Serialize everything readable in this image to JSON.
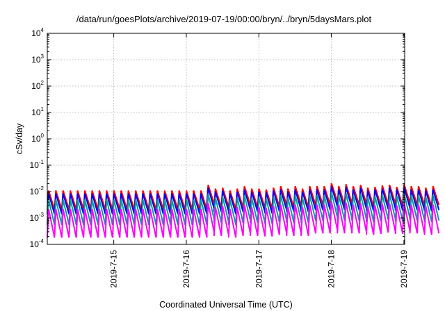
{
  "chart_data": {
    "type": "line",
    "title": "/data/run/goesPlots/archive/2019-07-19/00:00/bryn/../bryn/5daysMars.plot",
    "xlabel": "Coordinated Universal Time (UTC)",
    "ylabel": "cSv/day",
    "yscale": "log",
    "ylim": [
      0.0001,
      10000
    ],
    "xlim": [
      "2019-07-14 02:00",
      "2019-07-19 00:15"
    ],
    "grid": true,
    "y_ticks": [
      {
        "base": "10",
        "exp": "-4"
      },
      {
        "base": "10",
        "exp": "-3"
      },
      {
        "base": "10",
        "exp": "-2"
      },
      {
        "base": "10",
        "exp": "-1"
      },
      {
        "base": "10",
        "exp": "0"
      },
      {
        "base": "10",
        "exp": "1"
      },
      {
        "base": "10",
        "exp": "2"
      },
      {
        "base": "10",
        "exp": "3"
      },
      {
        "base": "10",
        "exp": "4"
      }
    ],
    "x_ticks": [
      "2019-7-15",
      "2019-7-16",
      "2019-7-17",
      "2019-7-18",
      "2019-7-19"
    ],
    "x_tick_times": [
      "2019-07-15 00:00",
      "2019-07-16 00:00",
      "2019-07-17 00:00",
      "2019-07-18 00:00",
      "2019-07-19 00:00"
    ],
    "cycle_hours": 2.4,
    "series": [
      {
        "color": "#ff0000",
        "peak": [
          0.011,
          0.011,
          0.011,
          0.011,
          0.011,
          0.011,
          0.011,
          0.011,
          0.011,
          0.011,
          0.011,
          0.011,
          0.011,
          0.011,
          0.011,
          0.011,
          0.011,
          0.011,
          0.011,
          0.011,
          0.011,
          0.011,
          0.018,
          0.013,
          0.014,
          0.011,
          0.013,
          0.016,
          0.013,
          0.013,
          0.012,
          0.014,
          0.016,
          0.013,
          0.016,
          0.013,
          0.016,
          0.016,
          0.016,
          0.021,
          0.016,
          0.019,
          0.016,
          0.018,
          0.014,
          0.015,
          0.017,
          0.018,
          0.015,
          0.019,
          0.016,
          0.016,
          0.014,
          0.016
        ],
        "trough": [
          0.0021,
          0.0021,
          0.0021,
          0.0021,
          0.0021,
          0.0021,
          0.0021,
          0.0021,
          0.0021,
          0.0021,
          0.0021,
          0.0021,
          0.0021,
          0.0021,
          0.0021,
          0.0021,
          0.0021,
          0.0021,
          0.0021,
          0.0021,
          0.0021,
          0.0021,
          0.0035,
          0.0025,
          0.0027,
          0.0021,
          0.0025,
          0.0031,
          0.0025,
          0.0025,
          0.0023,
          0.0027,
          0.0031,
          0.0025,
          0.0031,
          0.0025,
          0.0031,
          0.0031,
          0.0031,
          0.0041,
          0.0031,
          0.0037,
          0.0031,
          0.0035,
          0.0027,
          0.0029,
          0.0033,
          0.0035,
          0.0029,
          0.0037,
          0.0031,
          0.0031,
          0.0027,
          0.0031
        ]
      },
      {
        "color": "#0000ff",
        "peak": [
          0.0085,
          0.0085,
          0.0085,
          0.0085,
          0.0085,
          0.0085,
          0.0085,
          0.0085,
          0.0085,
          0.0085,
          0.0085,
          0.0085,
          0.0085,
          0.0085,
          0.0085,
          0.0085,
          0.0085,
          0.0085,
          0.0085,
          0.0085,
          0.0085,
          0.0085,
          0.014,
          0.01,
          0.011,
          0.0085,
          0.01,
          0.012,
          0.01,
          0.01,
          0.0093,
          0.011,
          0.012,
          0.01,
          0.012,
          0.01,
          0.012,
          0.012,
          0.012,
          0.016,
          0.012,
          0.015,
          0.012,
          0.014,
          0.011,
          0.012,
          0.013,
          0.014,
          0.012,
          0.015,
          0.012,
          0.012,
          0.011,
          0.012
        ],
        "trough": [
          0.0014,
          0.0014,
          0.0014,
          0.0014,
          0.0014,
          0.0014,
          0.0014,
          0.0014,
          0.0014,
          0.0014,
          0.0014,
          0.0014,
          0.0014,
          0.0014,
          0.0014,
          0.0014,
          0.0014,
          0.0014,
          0.0014,
          0.0014,
          0.0014,
          0.0014,
          0.0023,
          0.0017,
          0.0018,
          0.0014,
          0.0017,
          0.002,
          0.0017,
          0.0017,
          0.0015,
          0.0018,
          0.002,
          0.0017,
          0.002,
          0.0017,
          0.002,
          0.002,
          0.002,
          0.0027,
          0.002,
          0.0024,
          0.002,
          0.0023,
          0.0018,
          0.0019,
          0.0022,
          0.0023,
          0.0019,
          0.0024,
          0.002,
          0.002,
          0.0018,
          0.002
        ]
      },
      {
        "color": "#00a0a0",
        "peak": [
          0.005,
          0.005,
          0.005,
          0.005,
          0.005,
          0.005,
          0.005,
          0.005,
          0.005,
          0.005,
          0.005,
          0.005,
          0.005,
          0.005,
          0.005,
          0.005,
          0.005,
          0.005,
          0.005,
          0.005,
          0.005,
          0.005,
          0.0082,
          0.0059,
          0.0064,
          0.005,
          0.0059,
          0.0073,
          0.0059,
          0.0059,
          0.0055,
          0.0064,
          0.0073,
          0.0059,
          0.0073,
          0.0059,
          0.0073,
          0.0073,
          0.0073,
          0.0095,
          0.0073,
          0.0086,
          0.0073,
          0.0082,
          0.0064,
          0.0068,
          0.0077,
          0.0082,
          0.0068,
          0.0086,
          0.0073,
          0.0073,
          0.0064,
          0.0073
        ],
        "trough": [
          0.00055,
          0.00055,
          0.00055,
          0.00055,
          0.00055,
          0.00055,
          0.00055,
          0.00055,
          0.00055,
          0.00055,
          0.00055,
          0.00055,
          0.00055,
          0.00055,
          0.00055,
          0.00055,
          0.00055,
          0.00055,
          0.00055,
          0.00055,
          0.00055,
          0.00055,
          0.0009,
          0.00065,
          0.0007,
          0.00055,
          0.00065,
          0.0008,
          0.00065,
          0.00065,
          0.0006,
          0.0007,
          0.0008,
          0.00065,
          0.0008,
          0.00065,
          0.0008,
          0.0008,
          0.0008,
          0.00105,
          0.0008,
          0.00095,
          0.0008,
          0.0009,
          0.0007,
          0.00075,
          0.00085,
          0.0009,
          0.00075,
          0.00095,
          0.0008,
          0.0008,
          0.0007,
          0.0008
        ]
      },
      {
        "color": "#ff00ff",
        "peak": [
          0.0022,
          0.0022,
          0.0022,
          0.0022,
          0.0022,
          0.0022,
          0.0022,
          0.0022,
          0.0022,
          0.0022,
          0.0022,
          0.0022,
          0.0022,
          0.0022,
          0.0022,
          0.0022,
          0.0022,
          0.0022,
          0.0022,
          0.0022,
          0.0022,
          0.0022,
          0.0036,
          0.0026,
          0.0028,
          0.0022,
          0.0026,
          0.0032,
          0.0026,
          0.0026,
          0.0024,
          0.0028,
          0.0032,
          0.0026,
          0.0032,
          0.0026,
          0.0032,
          0.0032,
          0.0032,
          0.0042,
          0.0032,
          0.0038,
          0.0032,
          0.0036,
          0.0028,
          0.003,
          0.0034,
          0.0036,
          0.003,
          0.0038,
          0.0032,
          0.0032,
          0.0028,
          0.0032
        ],
        "trough": [
          0.00018,
          0.00018,
          0.00018,
          0.00018,
          0.00018,
          0.00018,
          0.00018,
          0.00018,
          0.00018,
          0.00018,
          0.00018,
          0.00018,
          0.00018,
          0.00018,
          0.00018,
          0.00018,
          0.00018,
          0.00018,
          0.00018,
          0.00018,
          0.00018,
          0.00018,
          0.0003,
          0.00021,
          0.00023,
          0.00018,
          0.00021,
          0.00026,
          0.00021,
          0.00021,
          0.0002,
          0.00023,
          0.00026,
          0.00021,
          0.00026,
          0.00021,
          0.00026,
          0.00026,
          0.00026,
          0.00035,
          0.00026,
          0.00032,
          0.00026,
          0.0003,
          0.00023,
          0.00025,
          0.00028,
          0.0003,
          0.00025,
          0.00032,
          0.00026,
          0.00026,
          0.00023,
          0.00026
        ]
      }
    ]
  }
}
